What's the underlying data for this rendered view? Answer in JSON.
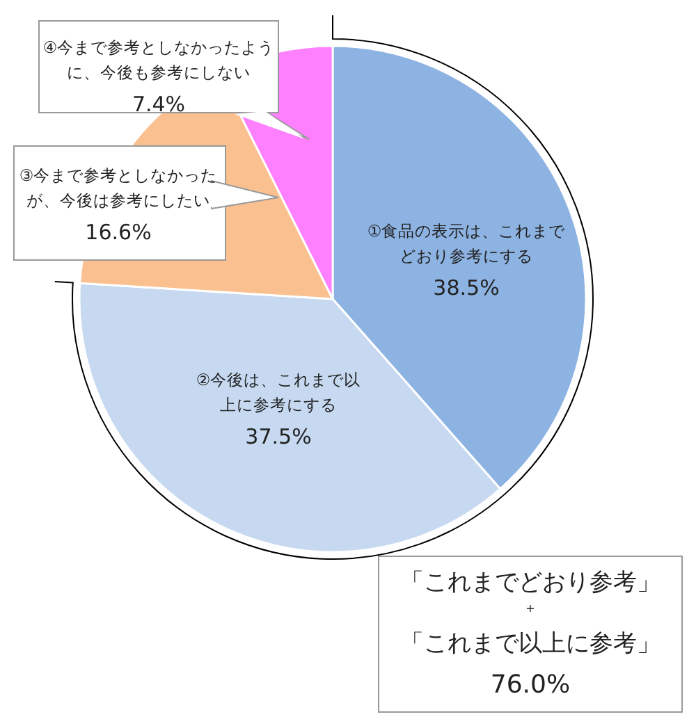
{
  "chart_data": {
    "type": "pie",
    "categories": [
      "①食品の表示は、これまでどおり参考にする",
      "②今後は、これまで以上に参考にする",
      "③今まで参考としなかったが、今後は参考にしたい",
      "④今まで参考としなかったように、今後も参考にしない"
    ],
    "values": [
      38.5,
      37.5,
      16.6,
      7.4
    ],
    "colors": [
      "#8db3e2",
      "#c6d9f1",
      "#fac090",
      "#ff80ff"
    ],
    "value_labels": [
      "38.5%",
      "37.5%",
      "16.6%",
      "7.4%"
    ],
    "annotations": [
      "「これまでどおり参考」",
      "+",
      "「これまで以上に参考」",
      "76.0%"
    ]
  }
}
